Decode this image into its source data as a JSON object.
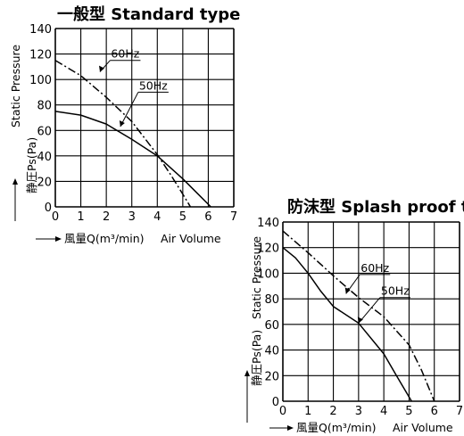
{
  "chart_data": [
    {
      "type": "line",
      "title": "一般型 Standard type",
      "xlabel": "風量Q(m³/min)",
      "xlabel_en": "Air Volume",
      "ylabel": "静圧Ps(Pa)",
      "ylabel_en": "Static Pressure",
      "xlim": [
        0,
        7
      ],
      "ylim": [
        0,
        140
      ],
      "x_ticks": [
        "0",
        "1",
        "2",
        "3",
        "4",
        "5",
        "6",
        "7"
      ],
      "y_ticks": [
        "0",
        "20",
        "40",
        "60",
        "80",
        "100",
        "120",
        "140"
      ],
      "grid": true,
      "series": [
        {
          "name": "60Hz",
          "line_style": "dash-dot",
          "x": [
            0,
            1,
            2,
            3,
            4,
            4.5,
            5,
            5.3
          ],
          "y": [
            115,
            103,
            86,
            67,
            41,
            26,
            10,
            0
          ]
        },
        {
          "name": "50Hz",
          "line_style": "solid",
          "x": [
            0,
            1,
            2,
            3,
            4,
            5,
            5.6,
            6.1
          ],
          "y": [
            75,
            72,
            65,
            53,
            40,
            22,
            10,
            0
          ]
        }
      ]
    },
    {
      "type": "line",
      "title": "防沫型 Splash proof type",
      "xlabel": "風量Q(m³/min)",
      "xlabel_en": "Air Volume",
      "ylabel": "静圧Ps(Pa)",
      "ylabel_en": "Static Pressure",
      "xlim": [
        0,
        7
      ],
      "ylim": [
        0,
        140
      ],
      "x_ticks": [
        "0",
        "1",
        "2",
        "3",
        "4",
        "5",
        "6",
        "7"
      ],
      "y_ticks": [
        "0",
        "20",
        "40",
        "60",
        "80",
        "100",
        "120",
        "140"
      ],
      "grid": true,
      "series": [
        {
          "name": "60Hz",
          "line_style": "dash-dot",
          "x": [
            0,
            1,
            2,
            3,
            4,
            5,
            5.5,
            6
          ],
          "y": [
            133,
            116,
            98,
            81,
            66,
            44,
            24,
            0
          ]
        },
        {
          "name": "50Hz",
          "line_style": "solid",
          "x": [
            0,
            0.5,
            1,
            1.5,
            2,
            3,
            4,
            4.5,
            5.1
          ],
          "y": [
            120,
            112,
            100,
            86,
            74,
            61,
            37,
            20,
            0
          ]
        }
      ]
    }
  ]
}
